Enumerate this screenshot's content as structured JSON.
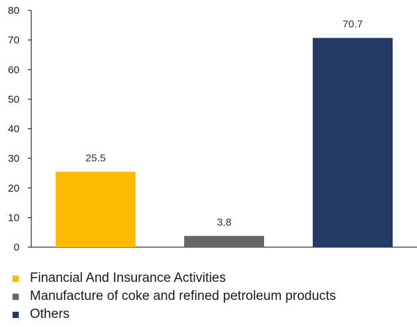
{
  "chart_data": {
    "type": "bar",
    "categories": [
      "Financial And Insurance Activities",
      "Manufacture of coke and refined petroleum products",
      "Others"
    ],
    "values": [
      25.5,
      3.8,
      70.7
    ],
    "value_labels": [
      "25.5",
      "3.8",
      "70.7"
    ],
    "colors": [
      "#FDBB00",
      "#666666",
      "#233A66"
    ],
    "ylim": [
      0,
      80
    ],
    "yticks": [
      0,
      10,
      20,
      30,
      40,
      50,
      60,
      70,
      80
    ],
    "ytick_labels": [
      "0",
      "10",
      "20",
      "30",
      "40",
      "50",
      "60",
      "70",
      "80"
    ],
    "grid": false,
    "legend_position": "bottom-left",
    "title": "",
    "xlabel": "",
    "ylabel": ""
  }
}
